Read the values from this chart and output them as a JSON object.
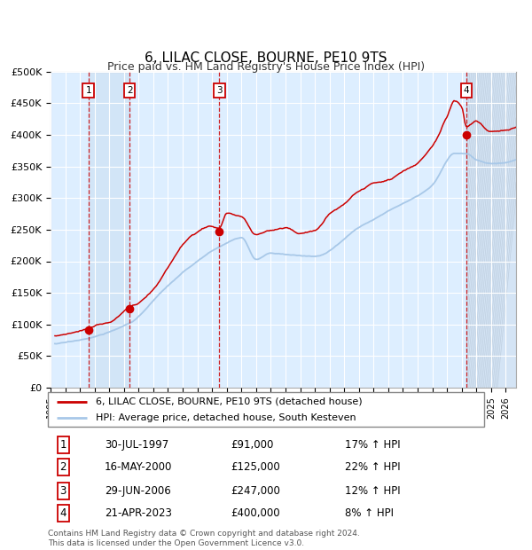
{
  "title": "6, LILAC CLOSE, BOURNE, PE10 9TS",
  "subtitle": "Price paid vs. HM Land Registry's House Price Index (HPI)",
  "title_fontsize": 11,
  "subtitle_fontsize": 9,
  "ylabel_ticks": [
    "£0",
    "£50K",
    "£100K",
    "£150K",
    "£200K",
    "£250K",
    "£300K",
    "£350K",
    "£400K",
    "£450K",
    "£500K"
  ],
  "ytick_vals": [
    0,
    50000,
    100000,
    150000,
    200000,
    250000,
    300000,
    350000,
    400000,
    450000,
    500000
  ],
  "ylim": [
    0,
    500000
  ],
  "xlim_start": 1995.3,
  "xlim_end": 2026.7,
  "hpi_color": "#a8c8e8",
  "price_color": "#cc0000",
  "bg_color": "#ddeeff",
  "grid_color": "#ffffff",
  "transactions": [
    {
      "num": 1,
      "date": "30-JUL-1997",
      "price": 91000,
      "year": 1997.58,
      "pct": "17%"
    },
    {
      "num": 2,
      "date": "16-MAY-2000",
      "price": 125000,
      "year": 2000.38,
      "pct": "22%"
    },
    {
      "num": 3,
      "date": "29-JUN-2006",
      "price": 247000,
      "year": 2006.49,
      "pct": "12%"
    },
    {
      "num": 4,
      "date": "21-APR-2023",
      "price": 400000,
      "year": 2023.31,
      "pct": "8%"
    }
  ],
  "legend_line1": "6, LILAC CLOSE, BOURNE, PE10 9TS (detached house)",
  "legend_line2": "HPI: Average price, detached house, South Kesteven",
  "table_data": [
    [
      "1",
      "30-JUL-1997",
      "£91,000",
      "17% ↑ HPI"
    ],
    [
      "2",
      "16-MAY-2000",
      "£125,000",
      "22% ↑ HPI"
    ],
    [
      "3",
      "29-JUN-2006",
      "£247,000",
      "12% ↑ HPI"
    ],
    [
      "4",
      "21-APR-2023",
      "£400,000",
      "8% ↑ HPI"
    ]
  ],
  "footnote": "Contains HM Land Registry data © Crown copyright and database right 2024.\nThis data is licensed under the Open Government Licence v3.0.",
  "hatch_region_start": 2023.31,
  "hatch_region_end": 2026.7
}
